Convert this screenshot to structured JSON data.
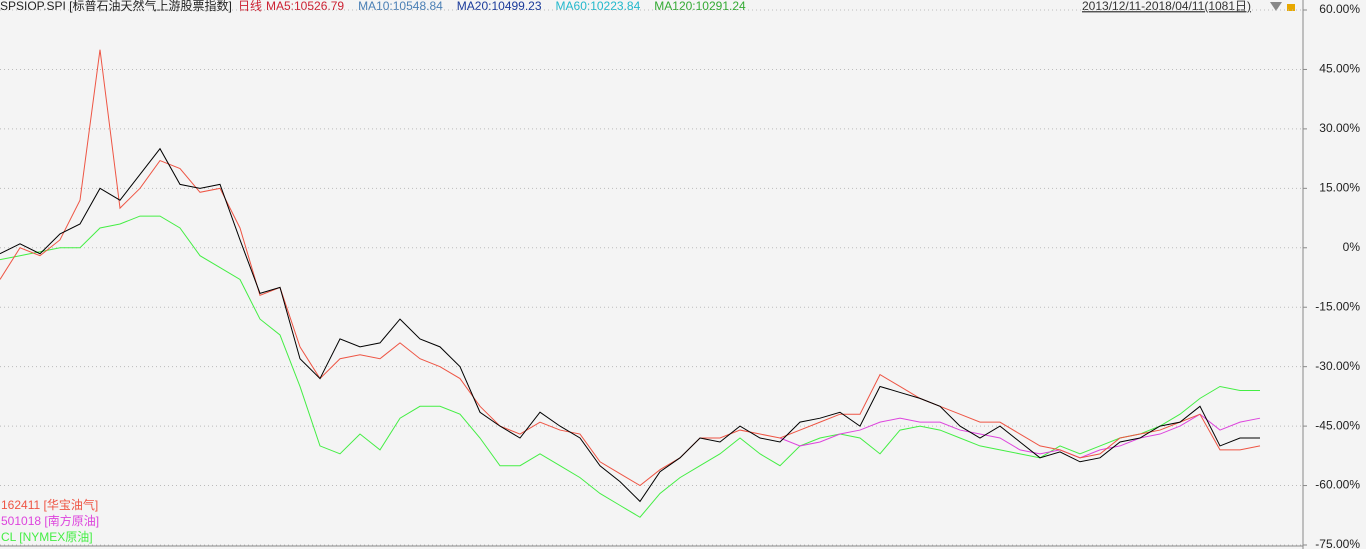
{
  "chart_data": {
    "type": "line",
    "title": "SPSIOP.SPI [标普石油天然气上游股票指数]",
    "period": "日线",
    "indicators": [
      {
        "label": "MA5:10526.79",
        "color": "#cc2233"
      },
      {
        "label": "MA10:10548.84",
        "color": "#4a7fb5"
      },
      {
        "label": "MA20:10499.23",
        "color": "#1a3a9a"
      },
      {
        "label": "MA60:10223.84",
        "color": "#22b8cc"
      },
      {
        "label": "MA120:10291.24",
        "color": "#33aa33"
      }
    ],
    "date_range": "2013/12/11-2018/04/11(1081日)",
    "ylim": [
      -75,
      60
    ],
    "yticks": [
      {
        "value": 60,
        "label": "60.00%"
      },
      {
        "value": 45,
        "label": "45.00%"
      },
      {
        "value": 30,
        "label": "30.00%"
      },
      {
        "value": 15,
        "label": "15.00%"
      },
      {
        "value": 0,
        "label": "0%"
      },
      {
        "value": -15,
        "label": "-15.00%"
      },
      {
        "value": -30,
        "label": "-30.00%"
      },
      {
        "value": -45,
        "label": "-45.00%"
      },
      {
        "value": -60,
        "label": "-60.00%"
      },
      {
        "value": -75,
        "label": "-75.00%"
      }
    ],
    "grid": true,
    "series": [
      {
        "color": "#000000",
        "values": [
          -1.5,
          1,
          -1.5,
          3.5,
          6,
          15,
          12,
          18.5,
          25,
          16,
          15,
          16,
          2,
          -11.5,
          -10,
          -28,
          -33,
          -23,
          -25,
          -24,
          -18,
          -23,
          -25,
          -30,
          -41.5,
          -45,
          -48,
          -41.5,
          -45,
          -48,
          -55,
          -59,
          -64,
          -56.5,
          -53,
          -48,
          -49,
          -45,
          -48,
          -49,
          -44,
          -43,
          -41.5,
          -45,
          -35,
          -36.5,
          -38,
          -40,
          -45,
          -48,
          -45,
          -49,
          -53,
          -51.5,
          -54,
          -53,
          -49,
          -48,
          -45,
          -44,
          -40,
          -50,
          -48,
          -48
        ]
      },
      {
        "name": "162411 [华宝油气]",
        "color": "#ee5544",
        "values": [
          -8,
          0,
          -2,
          2,
          12,
          50,
          10,
          15,
          22,
          20,
          14,
          15,
          5,
          -12,
          -10,
          -25,
          -33,
          -28,
          -27,
          -28,
          -24,
          -28,
          -30,
          -33,
          -40,
          -45,
          -47,
          -44,
          -46,
          -47,
          -54,
          -57,
          -60,
          -56,
          -53,
          -48,
          -48,
          -46,
          -47,
          -48,
          -46,
          -44,
          -42,
          -42,
          -32,
          -35,
          -38,
          -40,
          -42,
          -44,
          -44,
          -47,
          -50,
          -51,
          -53,
          -52,
          -48,
          -47,
          -46,
          -44,
          -42,
          -51,
          -51,
          -50
        ]
      },
      {
        "name": "501018 [南方原油]",
        "color": "#dd44dd",
        "values": [
          null,
          null,
          null,
          null,
          null,
          null,
          null,
          null,
          null,
          null,
          null,
          null,
          null,
          null,
          null,
          null,
          null,
          null,
          null,
          null,
          null,
          null,
          null,
          null,
          null,
          null,
          null,
          null,
          null,
          null,
          null,
          null,
          null,
          null,
          null,
          null,
          null,
          null,
          null,
          -48,
          -50,
          -49,
          -47,
          -46,
          -44,
          -43,
          -44,
          -44,
          -46,
          -47,
          -48,
          -51,
          -52,
          -51,
          -53,
          -51,
          -50,
          -48,
          -47,
          -45,
          -42,
          -46,
          -44,
          -43
        ]
      },
      {
        "name": "CL [NYMEX原油]",
        "color": "#44ee44",
        "values": [
          -3,
          -2,
          -1,
          0,
          0,
          5,
          6,
          8,
          8,
          5,
          -2,
          -5,
          -8,
          -18,
          -22,
          -35,
          -50,
          -52,
          -47,
          -51,
          -43,
          -40,
          -40,
          -42,
          -48,
          -55,
          -55,
          -52,
          -55,
          -58,
          -62,
          -65,
          -68,
          -62,
          -58,
          -55,
          -52,
          -48,
          -52,
          -55,
          -50,
          -48,
          -47,
          -48,
          -52,
          -46,
          -45,
          -46,
          -48,
          -50,
          -51,
          -52,
          -53,
          -50,
          -52,
          -50,
          -48,
          -47,
          -45,
          -42,
          -38,
          -35,
          -36,
          -36
        ]
      }
    ]
  }
}
